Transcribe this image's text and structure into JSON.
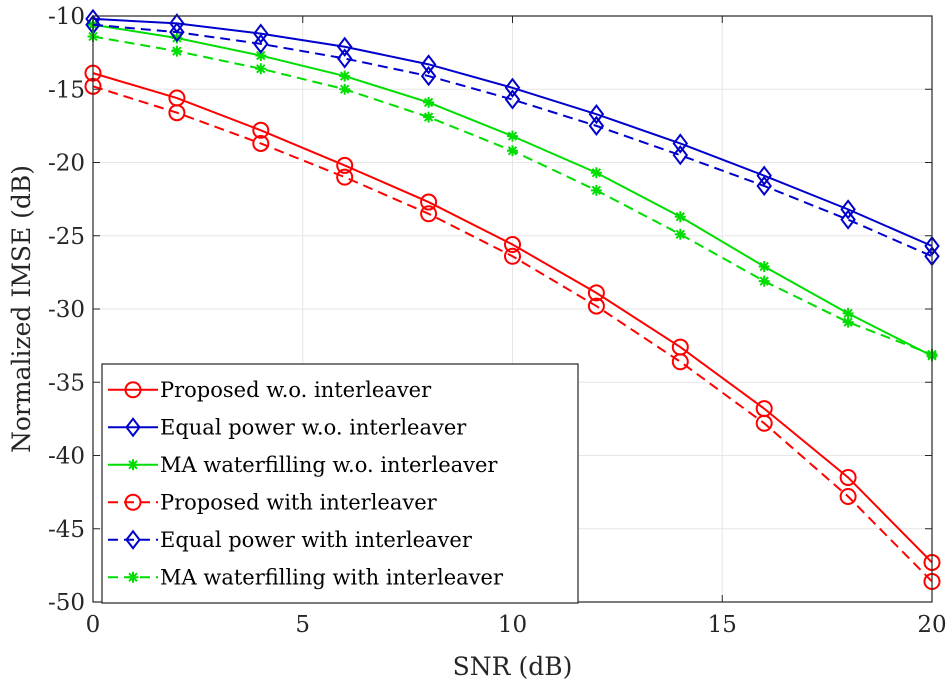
{
  "chart_data": {
    "type": "line",
    "xlabel": "SNR (dB)",
    "ylabel": "Normalized IMSE (dB)",
    "xlim": [
      0,
      20
    ],
    "ylim": [
      -50,
      -10
    ],
    "xticks": [
      0,
      5,
      10,
      15,
      20
    ],
    "yticks": [
      -10,
      -15,
      -20,
      -25,
      -30,
      -35,
      -40,
      -45,
      -50
    ],
    "grid": true,
    "legend_position": "bottom-left",
    "x": [
      0,
      2,
      4,
      6,
      8,
      10,
      12,
      14,
      16,
      18,
      20
    ],
    "series": [
      {
        "name": "Proposed w.o. interleaver",
        "color": "#ff0000",
        "marker": "circle",
        "dash": "solid",
        "values": [
          -13.9,
          -15.6,
          -17.8,
          -20.2,
          -22.7,
          -25.6,
          -28.9,
          -32.6,
          -36.8,
          -41.5,
          -47.3
        ]
      },
      {
        "name": "Equal power w.o. interleaver",
        "color": "#0000cc",
        "marker": "diamond",
        "dash": "solid",
        "values": [
          -10.2,
          -10.5,
          -11.2,
          -12.1,
          -13.3,
          -14.9,
          -16.7,
          -18.7,
          -20.9,
          -23.2,
          -25.7
        ]
      },
      {
        "name": "MA waterfilling w.o. interleaver",
        "color": "#00dd00",
        "marker": "star",
        "dash": "solid",
        "values": [
          -10.6,
          -11.5,
          -12.7,
          -14.1,
          -15.9,
          -18.2,
          -20.7,
          -23.7,
          -27.1,
          -30.3,
          -33.2
        ]
      },
      {
        "name": "Proposed with interleaver",
        "color": "#ff0000",
        "marker": "circle",
        "dash": "dashed",
        "values": [
          -14.8,
          -16.6,
          -18.7,
          -21.0,
          -23.5,
          -26.4,
          -29.8,
          -33.6,
          -37.8,
          -42.8,
          -48.6
        ]
      },
      {
        "name": "Equal power with interleaver",
        "color": "#0000cc",
        "marker": "diamond",
        "dash": "dashed",
        "values": [
          -10.6,
          -11.1,
          -11.9,
          -12.9,
          -14.1,
          -15.7,
          -17.5,
          -19.5,
          -21.6,
          -23.9,
          -26.4
        ]
      },
      {
        "name": "MA waterfilling with interleaver",
        "color": "#00dd00",
        "marker": "star",
        "dash": "dashed",
        "values": [
          -11.4,
          -12.4,
          -13.6,
          -15.0,
          -16.9,
          -19.2,
          -21.9,
          -24.9,
          -28.1,
          -30.9,
          -33.1
        ]
      }
    ]
  }
}
